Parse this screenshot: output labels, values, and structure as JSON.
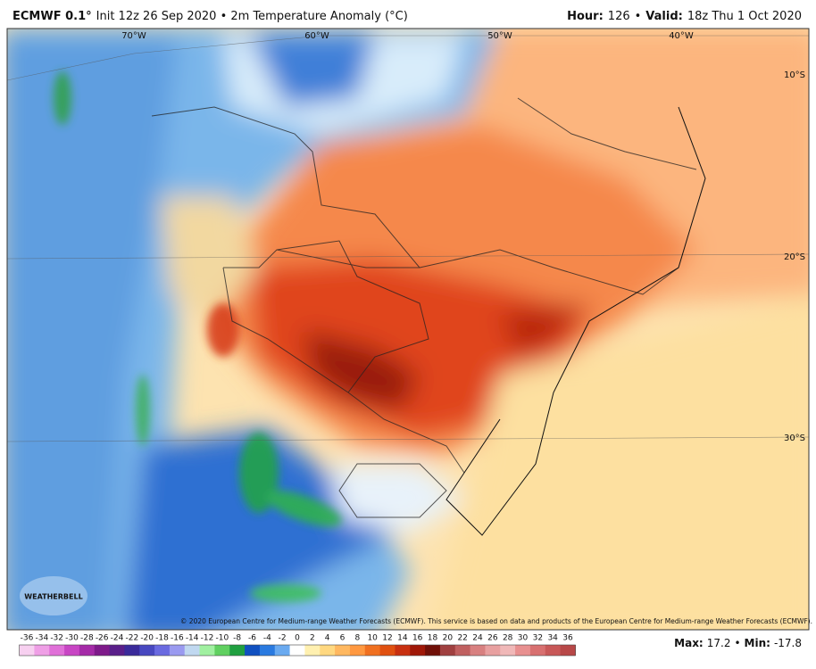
{
  "header": {
    "title": "ECMWF 0.1°",
    "subtitle": "Init 12z 26 Sep 2020 • 2m Temperature Anomaly (°C)",
    "right": [
      {
        "text": "Hour:",
        "bold": true
      },
      {
        "text": 126,
        "bold": false
      },
      {
        "text": "•",
        "bold": false
      },
      {
        "text": "Valid:",
        "bold": true
      },
      {
        "text": "18z Thu 1 Oct 2020",
        "bold": false
      }
    ]
  },
  "map": {
    "lon_labels": [
      "70°W",
      "60°W",
      "50°W",
      "40°W"
    ],
    "lat_labels": [
      "10°S",
      "20°S",
      "30°S"
    ],
    "copyright": "© 2020 European Centre for Medium-range Weather Forecasts (ECMWF). This service is based on data and products of the European Centre for Medium-range Weather Forecasts (ECMWF).",
    "logo": "WEATHERBELL"
  },
  "colorbar": {
    "ticks": [
      -36,
      -34,
      -32,
      -30,
      -28,
      -26,
      -24,
      -22,
      -20,
      -18,
      -16,
      -14,
      -12,
      -10,
      -8,
      -6,
      -4,
      -2,
      0,
      2,
      4,
      6,
      8,
      10,
      12,
      14,
      16,
      18,
      20,
      22,
      24,
      26,
      28,
      30,
      32,
      34,
      36
    ],
    "colors": [
      "#f7d0f0",
      "#ef9fe6",
      "#e070d8",
      "#c845c4",
      "#a52aa8",
      "#7e1a8a",
      "#5a1f8a",
      "#3a2a9a",
      "#4848c0",
      "#6a6ae0",
      "#9a9af0",
      "#c0d8f0",
      "#a0f0a0",
      "#60d060",
      "#20a040",
      "#1050c0",
      "#2a7ae0",
      "#6aaaf0",
      "#ffffff",
      "#fff0b0",
      "#ffd880",
      "#ffb860",
      "#ff9840",
      "#f07020",
      "#e05010",
      "#c83010",
      "#a01808",
      "#701008",
      "#a04040",
      "#c06060",
      "#d88080",
      "#e8a0a0",
      "#f0b8b8",
      "#e89090",
      "#d87070",
      "#c85858",
      "#b84848"
    ]
  },
  "stats": {
    "max_label": "Max:",
    "max": 17.2,
    "separator": "•",
    "min_label": "Min:",
    "min": -17.8
  }
}
